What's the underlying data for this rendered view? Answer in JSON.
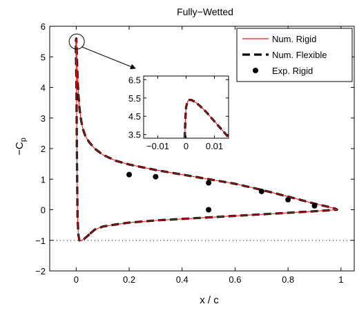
{
  "chart_data": {
    "type": "line",
    "title": "Fully−Wetted",
    "xlabel": "x / c",
    "ylabel_main": "−C",
    "ylabel_sub": "p",
    "xlim": [
      -0.1,
      1.05
    ],
    "ylim": [
      -2,
      6
    ],
    "xticks": [
      0,
      0.2,
      0.4,
      0.6,
      0.8,
      1
    ],
    "xtick_labels": [
      "0",
      "0.2",
      "0.4",
      "0.6",
      "0.8",
      "1"
    ],
    "yticks": [
      -2,
      -1,
      0,
      1,
      2,
      3,
      4,
      5,
      6
    ],
    "ytick_labels": [
      "−2",
      "−1",
      "0",
      "1",
      "2",
      "3",
      "4",
      "5",
      "6"
    ],
    "grid": false,
    "reference_line": {
      "y": -1,
      "style": "dotted"
    },
    "legend": {
      "position": "top-right",
      "entries": [
        {
          "label": "Num. Rigid",
          "style": "thin-solid",
          "color": "#e31a1c"
        },
        {
          "label": "Num. Flexible",
          "style": "thick-dashed",
          "color": "#000000"
        },
        {
          "label": "Exp. Rigid",
          "style": "marker",
          "color": "#000000"
        }
      ]
    },
    "series": [
      {
        "name": "Num. Rigid",
        "color": "#e31a1c",
        "x": [
          0.05,
          0.04,
          0.03,
          0.022,
          0.016,
          0.012,
          0.008,
          0.005,
          0.003,
          0.001,
          -0.001,
          -0.0015,
          -0.001,
          0.0005,
          0.0015,
          0.003,
          0.005,
          0.008,
          0.012,
          0.018,
          0.025,
          0.035,
          0.05,
          0.07,
          0.1,
          0.15,
          0.2,
          0.3,
          0.4,
          0.5,
          0.6,
          0.7,
          0.8,
          0.9,
          0.95,
          0.98,
          0.985,
          0.98,
          0.95,
          0.9,
          0.8,
          0.7,
          0.6,
          0.5,
          0.4,
          0.3,
          0.2,
          0.15,
          0.1,
          0.07,
          0.05
        ],
        "y": [
          -0.8,
          -0.88,
          -0.95,
          -1.0,
          -1.02,
          -1.0,
          -0.8,
          -0.2,
          1.5,
          4.0,
          5.2,
          5.45,
          5.55,
          5.6,
          5.35,
          4.9,
          4.35,
          3.8,
          3.35,
          2.95,
          2.65,
          2.4,
          2.2,
          2.0,
          1.8,
          1.6,
          1.48,
          1.3,
          1.15,
          1.0,
          0.85,
          0.65,
          0.43,
          0.2,
          0.1,
          0.03,
          0.0,
          0.0,
          -0.02,
          -0.05,
          -0.1,
          -0.15,
          -0.2,
          -0.25,
          -0.3,
          -0.35,
          -0.42,
          -0.48,
          -0.55,
          -0.65,
          -0.8
        ]
      },
      {
        "name": "Num. Flexible",
        "color": "#000000",
        "x": [
          0.05,
          0.04,
          0.03,
          0.022,
          0.016,
          0.012,
          0.008,
          0.005,
          0.003,
          0.001,
          -0.001,
          -0.0015,
          -0.001,
          0.0005,
          0.0015,
          0.003,
          0.005,
          0.008,
          0.012,
          0.018,
          0.025,
          0.035,
          0.05,
          0.07,
          0.1,
          0.15,
          0.2,
          0.3,
          0.4,
          0.5,
          0.6,
          0.7,
          0.8,
          0.9,
          0.95,
          0.98,
          0.985,
          0.98,
          0.95,
          0.9,
          0.8,
          0.7,
          0.6,
          0.5,
          0.4,
          0.3,
          0.2,
          0.15,
          0.1,
          0.07,
          0.05
        ],
        "y": [
          -0.8,
          -0.88,
          -0.95,
          -1.0,
          -1.02,
          -1.0,
          -0.8,
          -0.2,
          1.5,
          4.0,
          5.2,
          5.45,
          5.55,
          5.6,
          5.35,
          4.9,
          4.35,
          3.8,
          3.35,
          2.95,
          2.65,
          2.4,
          2.2,
          2.0,
          1.8,
          1.6,
          1.48,
          1.3,
          1.15,
          1.0,
          0.85,
          0.65,
          0.43,
          0.2,
          0.1,
          0.03,
          0.0,
          0.0,
          -0.02,
          -0.05,
          -0.1,
          -0.15,
          -0.2,
          -0.25,
          -0.3,
          -0.35,
          -0.42,
          -0.48,
          -0.55,
          -0.65,
          -0.8
        ]
      },
      {
        "name": "Exp. Rigid",
        "color": "#000000",
        "x": [
          0.2,
          0.3,
          0.5,
          0.5,
          0.7,
          0.8,
          0.9
        ],
        "y": [
          1.15,
          1.08,
          0.88,
          0.0,
          0.6,
          0.33,
          0.13
        ]
      }
    ],
    "inset": {
      "xlim": [
        -0.015,
        0.015
      ],
      "ylim": [
        3.3,
        6.7
      ],
      "xticks": [
        -0.01,
        0,
        0.01
      ],
      "xtick_labels": [
        "−0.01",
        "0",
        "0.01"
      ],
      "yticks": [
        3.5,
        4.5,
        5.5,
        6.5
      ],
      "ytick_labels": [
        "3.5",
        "4.5",
        "5.5",
        "6.5"
      ],
      "x": [
        -0.0005,
        -0.0002,
        0.0,
        0.0005,
        0.001,
        0.0015,
        0.002,
        0.003,
        0.004,
        0.005,
        0.007,
        0.009,
        0.011,
        0.013,
        0.015
      ],
      "y": [
        3.3,
        4.5,
        5.0,
        5.3,
        5.38,
        5.4,
        5.38,
        5.3,
        5.18,
        5.05,
        4.75,
        4.4,
        4.05,
        3.7,
        3.35
      ],
      "zoom_target": {
        "x": 0.002,
        "y": 5.5
      }
    }
  }
}
